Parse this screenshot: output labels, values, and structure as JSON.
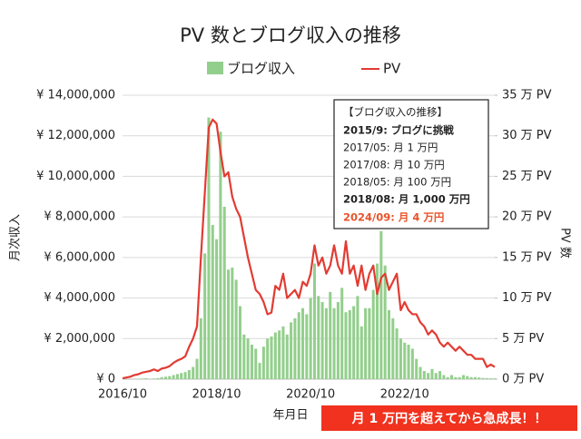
{
  "chart_data": {
    "type": "bar-line",
    "title": "PV 数とブログ収入の推移",
    "x_label": "年月日",
    "y_label": "月次収入",
    "y2_label": "PV 数",
    "categories": [
      "2016/10",
      null,
      null,
      null,
      null,
      null,
      null,
      null,
      null,
      null,
      null,
      null,
      null,
      null,
      null,
      null,
      null,
      null,
      null,
      null,
      null,
      null,
      null,
      null,
      "2018/10",
      null,
      null,
      null,
      null,
      null,
      null,
      null,
      null,
      null,
      null,
      null,
      null,
      null,
      null,
      null,
      null,
      null,
      null,
      null,
      null,
      null,
      null,
      null,
      "2020/10",
      null,
      null,
      null,
      null,
      null,
      null,
      null,
      null,
      null,
      null,
      null,
      null,
      null,
      null,
      null,
      null,
      null,
      null,
      null,
      null,
      null,
      null,
      null,
      "2022/10",
      null,
      null,
      null,
      null,
      null,
      null,
      null,
      null,
      null,
      null,
      null,
      null,
      null,
      null,
      null,
      null,
      null,
      null,
      null,
      null,
      null,
      null,
      null
    ],
    "series": [
      {
        "name": "ブログ収入",
        "type": "bar",
        "color": "#93cf8c",
        "axis": "y",
        "values": [
          0,
          0,
          0,
          10000,
          20000,
          30000,
          40000,
          10000,
          30000,
          50000,
          100000,
          120000,
          150000,
          200000,
          250000,
          300000,
          350000,
          450000,
          600000,
          1000000,
          3000000,
          6200000,
          12900000,
          7600000,
          6900000,
          12200000,
          8500000,
          5400000,
          5500000,
          4900000,
          3600000,
          2200000,
          2000000,
          1700000,
          1500000,
          800000,
          1600000,
          2000000,
          2100000,
          2300000,
          2400000,
          2600000,
          2200000,
          2800000,
          3000000,
          3300000,
          3500000,
          3200000,
          4000000,
          5700000,
          4100000,
          3800000,
          3500000,
          4300000,
          3500000,
          3800000,
          4500000,
          3300000,
          3400000,
          3600000,
          4100000,
          2600000,
          3500000,
          3500000,
          4400000,
          5700000,
          7300000,
          5600000,
          3400000,
          3000000,
          2500000,
          2000000,
          1800000,
          1700000,
          1500000,
          1000000,
          600000,
          400000,
          300000,
          500000,
          300000,
          400000,
          200000,
          100000,
          200000,
          100000,
          100000,
          200000,
          150000,
          100000,
          100000,
          80000,
          60000,
          50000,
          40000,
          40000
        ]
      },
      {
        "name": "PV",
        "type": "line",
        "color": "#e23b32",
        "axis": "y2",
        "values": [
          0.1,
          0.2,
          0.3,
          0.5,
          0.6,
          0.8,
          0.9,
          1.0,
          1.2,
          1.0,
          1.3,
          1.4,
          1.6,
          2.0,
          2.3,
          2.5,
          2.8,
          4.0,
          5.0,
          6.5,
          15,
          23,
          31,
          32,
          31.5,
          28,
          25,
          25.5,
          22.5,
          21,
          20,
          17.5,
          15,
          13,
          11,
          10.5,
          9.5,
          8,
          8.2,
          11.5,
          11,
          13,
          10,
          10.5,
          11,
          10,
          12,
          11.5,
          13,
          16.5,
          14,
          15,
          13,
          14,
          16.5,
          14,
          13,
          17,
          13,
          14,
          11.5,
          14,
          11,
          13,
          14,
          10.5,
          12.5,
          13,
          11,
          12,
          13,
          8.5,
          9.5,
          8.5,
          8,
          8,
          7,
          6.5,
          5.5,
          6,
          5.5,
          4.5,
          4,
          4.5,
          4,
          3.5,
          4,
          3.5,
          3,
          3,
          2.5,
          2.5,
          2.5,
          1.5,
          1.8,
          1.5
        ]
      }
    ],
    "ylim": [
      0,
      14000000
    ],
    "yticks": [
      {
        "value": 0,
        "label": "¥ 0"
      },
      {
        "value": 2000000,
        "label": "¥ 2,000,000"
      },
      {
        "value": 4000000,
        "label": "¥ 4,000,000"
      },
      {
        "value": 6000000,
        "label": "¥ 6,000,000"
      },
      {
        "value": 8000000,
        "label": "¥ 8,000,000"
      },
      {
        "value": 10000000,
        "label": "¥ 10,000,000"
      },
      {
        "value": 12000000,
        "label": "¥ 12,000,000"
      },
      {
        "value": 14000000,
        "label": "¥ 14,000,000"
      }
    ],
    "y2lim": [
      0,
      35
    ],
    "y2ticks": [
      {
        "value": 0,
        "label": "0 万 PV"
      },
      {
        "value": 5,
        "label": "5 万 PV"
      },
      {
        "value": 10,
        "label": "10 万 PV"
      },
      {
        "value": 15,
        "label": "15 万 PV"
      },
      {
        "value": 20,
        "label": "20 万 PV"
      },
      {
        "value": 25,
        "label": "25 万 PV"
      },
      {
        "value": 30,
        "label": "30 万 PV"
      },
      {
        "value": 35,
        "label": "35 万 PV"
      }
    ],
    "grid": true,
    "legend": "top",
    "annotation": {
      "title": "【ブログ収入の推移】",
      "lines": [
        "2015/9: ブログに挑戦",
        "2017/05: 月 1 万円",
        "2017/08: 月 10 万円",
        "2018/05: 月 100 万円",
        "2018/08: 月 1,000 万円",
        "2024/09: 月 4 万円"
      ]
    },
    "banner": "月 1 万円を超えてから急成長！！"
  }
}
